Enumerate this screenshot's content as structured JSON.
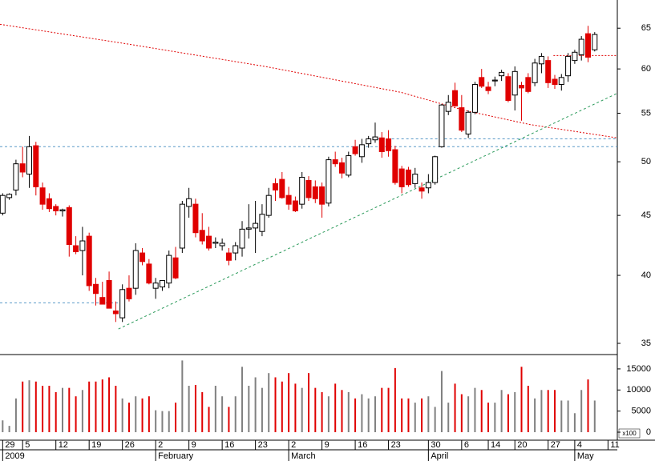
{
  "chart_data": {
    "type": "candlestick",
    "ylog": true,
    "xlim": [
      -0.4,
      92.4
    ],
    "ylim": [
      34.4,
      68.7
    ],
    "yticks": [
      35,
      40,
      45,
      50,
      55,
      60,
      65
    ],
    "volume_ylim": [
      0,
      18400
    ],
    "volume_yticks": [
      0,
      5000,
      10000,
      15000
    ],
    "volume_unit_label": "x100",
    "up_color": "#ffffff",
    "down_color": "#e00000",
    "volume_up_color": "#808080",
    "xticks": [
      {
        "value": 0,
        "label": "29"
      },
      {
        "value": 3,
        "label": "5"
      },
      {
        "value": 8,
        "label": "12"
      },
      {
        "value": 13,
        "label": "19"
      },
      {
        "value": 18,
        "label": "26"
      },
      {
        "value": 23,
        "label": "2"
      },
      {
        "value": 28,
        "label": "9"
      },
      {
        "value": 33,
        "label": "16"
      },
      {
        "value": 38,
        "label": "23"
      },
      {
        "value": 43,
        "label": "2"
      },
      {
        "value": 48,
        "label": "9"
      },
      {
        "value": 53,
        "label": "16"
      },
      {
        "value": 58,
        "label": "23"
      },
      {
        "value": 64,
        "label": "30"
      },
      {
        "value": 69,
        "label": "6"
      },
      {
        "value": 73,
        "label": "14"
      },
      {
        "value": 77,
        "label": "20"
      },
      {
        "value": 82,
        "label": "27"
      },
      {
        "value": 86,
        "label": "4"
      },
      {
        "value": 91,
        "label": "11"
      }
    ],
    "months": [
      {
        "value": 0,
        "label": "2009"
      },
      {
        "value": 23,
        "label": "February"
      },
      {
        "value": 43,
        "label": "March"
      },
      {
        "value": 64,
        "label": "April"
      },
      {
        "value": 86,
        "label": "May"
      }
    ],
    "candles": [
      [
        45.2,
        47,
        45,
        46.8
      ],
      [
        46.6,
        47,
        46.4,
        46.9
      ],
      [
        47.3,
        50.2,
        46.8,
        49.8
      ],
      [
        49.8,
        51.5,
        48.5,
        49.0
      ],
      [
        48.8,
        52.6,
        47.5,
        51.5
      ],
      [
        51.6,
        52.0,
        46.8,
        47.6
      ],
      [
        47.5,
        48,
        45.5,
        46
      ],
      [
        46.5,
        47,
        45.3,
        45.6
      ],
      [
        45.8,
        46,
        45,
        45.4
      ],
      [
        45.4,
        45.6,
        44.9,
        45.5
      ],
      [
        45.7,
        45.9,
        41.5,
        42.5
      ],
      [
        42.4,
        43.2,
        41.7,
        41.9
      ],
      [
        42,
        44,
        40,
        42.8
      ],
      [
        43.2,
        43.5,
        38.8,
        39.2
      ],
      [
        39.3,
        39.8,
        37.7,
        38.6
      ],
      [
        38.3,
        39.5,
        37.8,
        37.8
      ],
      [
        39.6,
        40.3,
        37.5,
        37.5
      ],
      [
        37.3,
        38,
        36.5,
        37.1
      ],
      [
        36.8,
        39.3,
        36.5,
        38.9
      ],
      [
        39.0,
        40,
        38,
        38.2
      ],
      [
        39,
        42.6,
        38.5,
        42.0
      ],
      [
        41.8,
        42.2,
        40.8,
        41.1
      ],
      [
        40.9,
        41.3,
        39.3,
        39.4
      ],
      [
        39.0,
        39.8,
        38.2,
        39.4
      ],
      [
        39.1,
        39.6,
        38.8,
        39.6
      ],
      [
        39.4,
        42,
        39,
        41.6
      ],
      [
        41.4,
        42.3,
        39.7,
        39.8
      ],
      [
        42.2,
        46.3,
        41.8,
        46
      ],
      [
        45.8,
        47.5,
        44.8,
        46.5
      ],
      [
        46,
        46.5,
        43.1,
        43.5
      ],
      [
        43.7,
        45.2,
        42.5,
        42.8
      ],
      [
        43.2,
        44,
        42,
        42.2
      ],
      [
        42.6,
        43.1,
        42.2,
        42.7
      ],
      [
        42.4,
        43,
        42,
        42.6
      ],
      [
        41.8,
        42.2,
        40.8,
        41.2
      ],
      [
        41.8,
        42.7,
        41.2,
        42.4
      ],
      [
        42.2,
        44.5,
        41.5,
        43.8
      ],
      [
        43.8,
        46,
        43,
        43.9
      ],
      [
        43.9,
        46.3,
        41.8,
        44.3
      ],
      [
        43.6,
        46,
        43.2,
        45.1
      ],
      [
        45,
        47.5,
        44.8,
        46.8
      ],
      [
        47.9,
        48.4,
        46.3,
        47.3
      ],
      [
        48.3,
        49,
        46.5,
        46.6
      ],
      [
        46.8,
        47.6,
        45.5,
        46
      ],
      [
        46.3,
        46.7,
        45.3,
        45.4
      ],
      [
        46,
        49,
        45.6,
        48.5
      ],
      [
        48.2,
        48.6,
        46.3,
        46.6
      ],
      [
        47.6,
        48.2,
        46.1,
        46.5
      ],
      [
        47.6,
        48,
        44.8,
        46.0
      ],
      [
        46.1,
        50.5,
        45.8,
        50.2
      ],
      [
        50.2,
        51,
        49.5,
        49.8
      ],
      [
        49.9,
        50.4,
        48.4,
        48.9
      ],
      [
        48.7,
        51,
        48.5,
        50.6
      ],
      [
        51.5,
        52.2,
        50.6,
        50.8
      ],
      [
        50.5,
        52.3,
        49.9,
        51.7
      ],
      [
        51.8,
        52.6,
        51.4,
        52.3
      ],
      [
        52.2,
        54,
        51.9,
        52.5
      ],
      [
        52.4,
        53,
        50.4,
        51
      ],
      [
        52.3,
        53.2,
        50.5,
        51.1
      ],
      [
        51.2,
        51.6,
        47.8,
        48
      ],
      [
        49.3,
        49.6,
        47,
        47.6
      ],
      [
        49.2,
        49.5,
        47.6,
        47.8
      ],
      [
        47.9,
        49.4,
        47.5,
        48.8
      ],
      [
        47.5,
        48,
        46.5,
        47.2
      ],
      [
        47.5,
        48.8,
        47,
        48
      ],
      [
        48,
        50.6,
        47.8,
        50.5
      ],
      [
        51.5,
        56,
        51.4,
        55.9
      ],
      [
        55.2,
        57,
        54.8,
        56.2
      ],
      [
        57.5,
        58.4,
        55.7,
        55.8
      ],
      [
        55.6,
        57,
        53,
        53.2
      ],
      [
        52.8,
        55.3,
        52.4,
        55.1
      ],
      [
        55.1,
        58.5,
        54.9,
        58.2
      ],
      [
        59,
        60,
        57.8,
        58
      ],
      [
        57.9,
        58.5,
        57.1,
        57.5
      ],
      [
        58.6,
        59.1,
        58,
        58.7
      ],
      [
        59.2,
        59.9,
        58.6,
        59.6
      ],
      [
        59.1,
        59.5,
        56.2,
        56.4
      ],
      [
        57,
        60.3,
        55.3,
        59.7
      ],
      [
        58.1,
        58.5,
        54.2,
        57.8
      ],
      [
        59,
        59.5,
        57.2,
        57.4
      ],
      [
        58.4,
        61.2,
        58,
        60.7
      ],
      [
        60.6,
        61.9,
        59.5,
        61.5
      ],
      [
        61,
        61.5,
        57.8,
        58.4
      ],
      [
        58.8,
        59.3,
        57.7,
        58.2
      ],
      [
        58.2,
        59.4,
        57.5,
        59
      ],
      [
        59.2,
        61.9,
        58.5,
        61.5
      ],
      [
        61,
        62.3,
        60.6,
        62.0
      ],
      [
        61.7,
        64,
        61,
        63.6
      ],
      [
        64.3,
        65.3,
        60.8,
        61.4
      ],
      [
        62.3,
        64.5,
        62.1,
        64.2
      ]
    ],
    "volume": [
      2800,
      1500,
      8000,
      12000,
      12300,
      12000,
      11000,
      11000,
      9500,
      10500,
      10500,
      8500,
      10000,
      12000,
      12000,
      12500,
      13000,
      11000,
      8000,
      7000,
      8500,
      8000,
      8500,
      5200,
      5000,
      5000,
      7000,
      17000,
      11000,
      11200,
      9500,
      6000,
      11000,
      8500,
      6000,
      8500,
      15500,
      11000,
      13000,
      10500,
      14000,
      13000,
      12000,
      14000,
      11500,
      10500,
      14000,
      10500,
      9500,
      8500,
      11500,
      10000,
      9500,
      8000,
      9000,
      8000,
      8500,
      10500,
      10500,
      15200,
      8000,
      8000,
      7000,
      8000,
      8500,
      6000,
      14500,
      7000,
      11500,
      9000,
      8500,
      10500,
      10000,
      7000,
      7000,
      10000,
      9000,
      9500,
      15500,
      11000,
      8000,
      10000,
      10000,
      10000,
      7500,
      7500,
      4500,
      10000,
      12500,
      7500
    ],
    "overlays": [
      {
        "x": [
          -0.4,
          18.9,
          39.4,
          59.9,
          69.5,
          79.2,
          92.4
        ],
        "values": [
          65.5,
          63.0,
          60.3,
          57.3,
          55.3,
          53.8,
          52.4
        ],
        "color": "#e00000",
        "dash": "2,2"
      },
      {
        "x": [
          17.4,
          92.4
        ],
        "values": [
          36.0,
          57.2
        ],
        "color": "#2a9a5a",
        "dash": "3,3"
      },
      {
        "x": [
          -0.4,
          18.4
        ],
        "values": [
          37.9,
          37.9
        ],
        "color": "#5a9ac8",
        "dash": "3,3"
      },
      {
        "x": [
          -0.4,
          92.4
        ],
        "values": [
          51.5,
          51.5
        ],
        "color": "#5a9ac8",
        "dash": "3,3"
      },
      {
        "x": [
          55.6,
          92.4
        ],
        "values": [
          52.3,
          52.3
        ],
        "color": "#5a9ac8",
        "dash": "3,3"
      },
      {
        "x": [
          82.8,
          92.4
        ],
        "values": [
          61.6,
          61.6
        ],
        "color": "#e00000",
        "dash": "2,2"
      }
    ]
  }
}
